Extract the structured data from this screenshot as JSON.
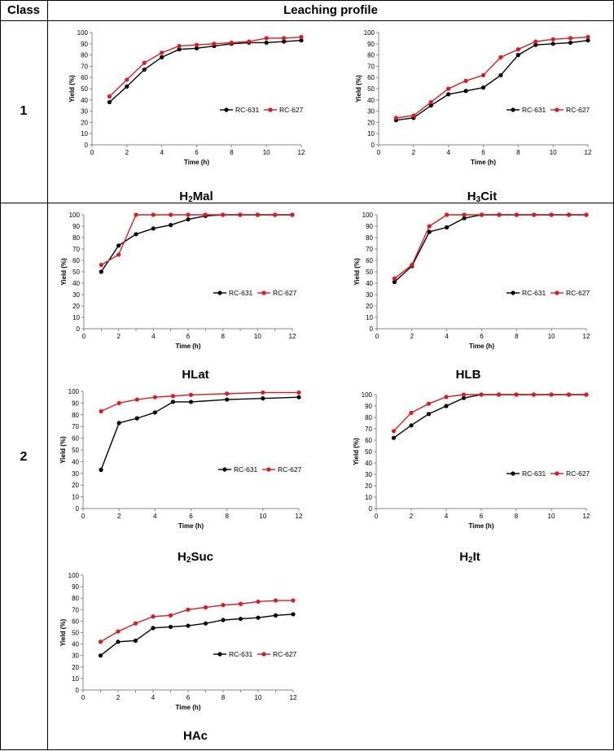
{
  "table": {
    "header_class": "Class",
    "header_profile": "Leaching profile",
    "class_1": "1",
    "class_2": "2"
  },
  "captions": {
    "h2mal": {
      "pre": "H",
      "sub": "2",
      "post": "Mal"
    },
    "h3cit": {
      "pre": "H",
      "sub": "3",
      "post": "Cit"
    },
    "hlat": {
      "pre": "HLat",
      "sub": "",
      "post": ""
    },
    "hlb": {
      "pre": "HLB",
      "sub": "",
      "post": ""
    },
    "h2suc": {
      "pre": "H",
      "sub": "2",
      "post": "Suc"
    },
    "h2it": {
      "pre": "H",
      "sub": "2",
      "post": "It"
    },
    "hac": {
      "pre": "HAc",
      "sub": "",
      "post": ""
    }
  },
  "colors": {
    "rc631": "#000000",
    "rc627": "#e0191f"
  },
  "chart_data": [
    {
      "id": "h2mal",
      "type": "line",
      "title": "H2Mal",
      "xlabel": "Time (h)",
      "ylabel": "Yield (%)",
      "xlim": [
        0,
        12
      ],
      "xticks": [
        0,
        2,
        4,
        6,
        8,
        10,
        12
      ],
      "ylim": [
        0,
        100
      ],
      "yticks": [
        0,
        10,
        20,
        30,
        40,
        50,
        60,
        70,
        80,
        90,
        100
      ],
      "legend": "center-right",
      "series": [
        {
          "name": "RC-631",
          "x": [
            1,
            2,
            3,
            4,
            5,
            6,
            7,
            8,
            9,
            10,
            11,
            12
          ],
          "y": [
            38,
            52,
            67,
            78,
            85,
            86,
            88,
            90,
            91,
            91,
            92,
            93
          ]
        },
        {
          "name": "RC-627",
          "x": [
            1,
            2,
            3,
            4,
            5,
            6,
            7,
            8,
            9,
            10,
            11,
            12
          ],
          "y": [
            43,
            58,
            73,
            82,
            88,
            89,
            90,
            91,
            92,
            95,
            95,
            96
          ]
        }
      ]
    },
    {
      "id": "h3cit",
      "type": "line",
      "title": "H3Cit",
      "xlabel": "Time (h)",
      "ylabel": "Yield (%)",
      "xlim": [
        0,
        12
      ],
      "xticks": [
        0,
        2,
        4,
        6,
        8,
        10,
        12
      ],
      "ylim": [
        0,
        100
      ],
      "yticks": [
        0,
        10,
        20,
        30,
        40,
        50,
        60,
        70,
        80,
        90,
        100
      ],
      "legend": "center-right",
      "series": [
        {
          "name": "RC-631",
          "x": [
            1,
            2,
            3,
            4,
            5,
            6,
            7,
            8,
            9,
            10,
            11,
            12
          ],
          "y": [
            22,
            24,
            35,
            45,
            48,
            51,
            62,
            80,
            89,
            90,
            91,
            93
          ]
        },
        {
          "name": "RC-627",
          "x": [
            1,
            2,
            3,
            4,
            5,
            6,
            7,
            8,
            9,
            10,
            11,
            12
          ],
          "y": [
            24,
            26,
            38,
            50,
            57,
            62,
            78,
            85,
            92,
            94,
            95,
            96
          ]
        }
      ]
    },
    {
      "id": "hlat",
      "type": "line",
      "title": "HLat",
      "xlabel": "Time (h)",
      "ylabel": "Yield (%)",
      "xlim": [
        0,
        12
      ],
      "xticks": [
        0,
        1,
        2,
        3,
        4,
        5,
        6,
        7,
        8,
        9,
        10,
        11,
        12
      ],
      "xticklabels": [
        0,
        2,
        4,
        6,
        8,
        10,
        12
      ],
      "ylim": [
        0,
        100
      ],
      "yticks": [
        0,
        10,
        20,
        30,
        40,
        50,
        60,
        70,
        80,
        90,
        100
      ],
      "legend": "center-right",
      "series": [
        {
          "name": "RC-631",
          "x": [
            1,
            2,
            3,
            4,
            5,
            6,
            7,
            8,
            9,
            10,
            11,
            12
          ],
          "y": [
            50,
            73,
            83,
            88,
            91,
            96,
            99,
            100,
            100,
            100,
            100,
            100
          ]
        },
        {
          "name": "RC-627",
          "x": [
            1,
            2,
            3,
            4,
            5,
            6,
            7,
            8,
            9,
            10,
            11,
            12
          ],
          "y": [
            56,
            65,
            100,
            100,
            100,
            100,
            100,
            100,
            100,
            100,
            100,
            100
          ]
        }
      ]
    },
    {
      "id": "hlb",
      "type": "line",
      "title": "HLB",
      "xlabel": "Time (h)",
      "ylabel": "Yield (%)",
      "xlim": [
        0,
        12
      ],
      "xticks": [
        0,
        2,
        4,
        6,
        8,
        10,
        12
      ],
      "ylim": [
        0,
        100
      ],
      "yticks": [
        0,
        10,
        20,
        30,
        40,
        50,
        60,
        70,
        80,
        90,
        100
      ],
      "legend": "center-right",
      "series": [
        {
          "name": "RC-631",
          "x": [
            1,
            2,
            3,
            4,
            5,
            6,
            7,
            8,
            9,
            10,
            11,
            12
          ],
          "y": [
            41,
            55,
            85,
            89,
            97,
            100,
            100,
            100,
            100,
            100,
            100,
            100
          ]
        },
        {
          "name": "RC-627",
          "x": [
            1,
            2,
            3,
            4,
            5,
            6,
            7,
            8,
            9,
            10,
            11,
            12
          ],
          "y": [
            44,
            56,
            90,
            100,
            100,
            100,
            100,
            100,
            100,
            100,
            100,
            100
          ]
        }
      ]
    },
    {
      "id": "h2suc",
      "type": "line",
      "title": "H2Suc",
      "xlabel": "Time (h)",
      "ylabel": "Yield (%)",
      "xlim": [
        0,
        12
      ],
      "xticks": [
        0,
        2,
        4,
        6,
        8,
        10,
        12
      ],
      "ylim": [
        0,
        100
      ],
      "yticks": [
        0,
        10,
        20,
        30,
        40,
        50,
        60,
        70,
        80,
        90,
        100
      ],
      "legend": "center-right",
      "series": [
        {
          "name": "RC-631",
          "x": [
            1,
            2,
            3,
            4,
            5,
            6,
            8,
            10,
            12
          ],
          "y": [
            33,
            73,
            77,
            82,
            91,
            91,
            93,
            94,
            95
          ]
        },
        {
          "name": "RC-627",
          "x": [
            1,
            2,
            3,
            4,
            5,
            6,
            8,
            10,
            12
          ],
          "y": [
            83,
            90,
            93,
            95,
            96,
            97,
            98,
            99,
            99
          ]
        }
      ]
    },
    {
      "id": "h2it",
      "type": "line",
      "title": "H2It",
      "xlabel": "Time (h)",
      "ylabel": "Yield (%)",
      "xlim": [
        0,
        12
      ],
      "xticks": [
        0,
        2,
        4,
        6,
        8,
        10,
        12
      ],
      "ylim": [
        0,
        100
      ],
      "yticks": [
        0,
        10,
        20,
        30,
        40,
        50,
        60,
        70,
        80,
        90,
        100
      ],
      "legend": "center-right",
      "series": [
        {
          "name": "RC-631",
          "x": [
            1,
            2,
            3,
            4,
            5,
            6,
            7,
            8,
            9,
            10,
            11,
            12
          ],
          "y": [
            62,
            73,
            83,
            90,
            97,
            100,
            100,
            100,
            100,
            100,
            100,
            100
          ]
        },
        {
          "name": "RC-627",
          "x": [
            1,
            2,
            3,
            4,
            5,
            6,
            7,
            8,
            9,
            10,
            11,
            12
          ],
          "y": [
            68,
            84,
            92,
            98,
            100,
            100,
            100,
            100,
            100,
            100,
            100,
            100
          ]
        }
      ]
    },
    {
      "id": "hac",
      "type": "line",
      "title": "HAc",
      "xlabel": "Time (h)",
      "ylabel": "Yield (%)",
      "xlim": [
        0,
        12
      ],
      "xticks": [
        0,
        1,
        2,
        3,
        4,
        5,
        6,
        7,
        8,
        9,
        10,
        11,
        12
      ],
      "xticklabels": [
        0,
        2,
        4,
        6,
        8,
        10,
        12
      ],
      "ylim": [
        0,
        100
      ],
      "yticks": [
        0,
        10,
        20,
        30,
        40,
        50,
        60,
        70,
        80,
        90,
        100
      ],
      "legend": "center-right",
      "series": [
        {
          "name": "RC-631",
          "x": [
            1,
            2,
            3,
            4,
            5,
            6,
            7,
            8,
            9,
            10,
            11,
            12
          ],
          "y": [
            30,
            42,
            43,
            54,
            55,
            56,
            58,
            61,
            62,
            63,
            65,
            66
          ]
        },
        {
          "name": "RC-627",
          "x": [
            1,
            2,
            3,
            4,
            5,
            6,
            7,
            8,
            9,
            10,
            11,
            12
          ],
          "y": [
            42,
            51,
            58,
            64,
            65,
            70,
            72,
            74,
            75,
            77,
            78,
            78
          ]
        }
      ]
    }
  ]
}
